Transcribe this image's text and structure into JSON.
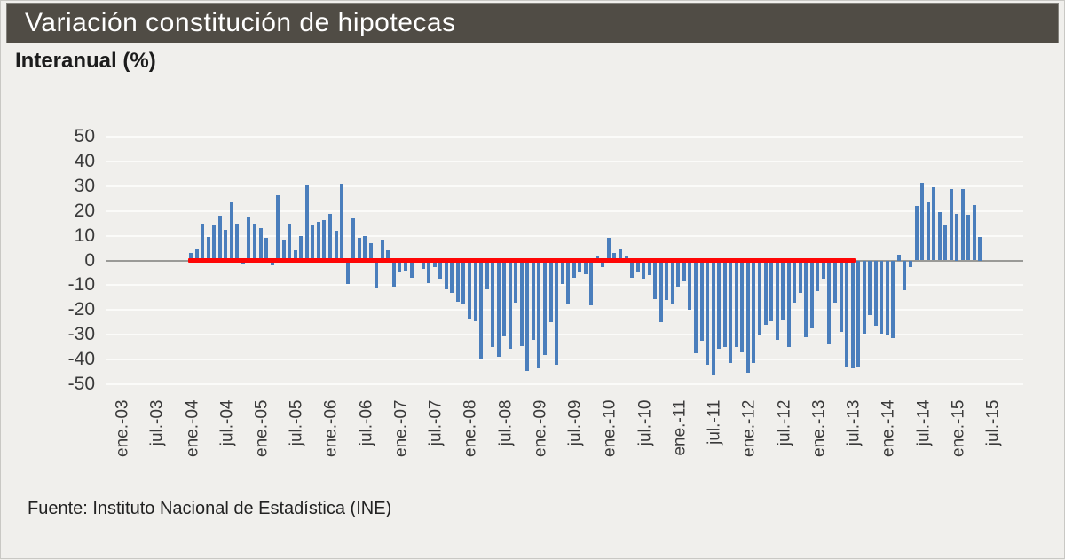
{
  "header": {
    "title": "Variación constitución de hipotecas",
    "subtitle": "Interanual (%)"
  },
  "footer": {
    "source": "Fuente: Instituto Nacional de Estadística (INE)"
  },
  "colors": {
    "title_bar_bg": "#504c45",
    "title_text": "#ffffff",
    "page_bg": "#f0efec",
    "bar_fill": "#4a7ebc",
    "reference_line": "#fe0606",
    "zero_axis": "#9a9a97",
    "gridline": "#fbfbf9",
    "tick_text": "#3a3a3a"
  },
  "chart_data": {
    "type": "bar",
    "title": "Variación constitución de hipotecas",
    "ylabel": "Interanual (%)",
    "xlabel": "",
    "ylim": [
      -50,
      50
    ],
    "y_ticks": [
      50,
      40,
      30,
      20,
      10,
      0,
      -10,
      -20,
      -30,
      -40,
      -50
    ],
    "x_tick_labels": [
      "ene.-03",
      "jul.-03",
      "ene.-04",
      "jul.-04",
      "ene.-05",
      "jul.-05",
      "ene.-06",
      "jul.-06",
      "ene.-07",
      "jul.-07",
      "ene.-08",
      "jul.-08",
      "ene.-09",
      "jul.-09",
      "ene.-10",
      "jul.-10",
      "ene.-11",
      "jul.-11",
      "ene.-12",
      "jul.-12",
      "ene.-13",
      "jul.-13",
      "ene.-14",
      "jul.-14",
      "ene.-15",
      "jul.-15"
    ],
    "grid": true,
    "legend": false,
    "categories": [
      "2004-01",
      "2004-02",
      "2004-03",
      "2004-04",
      "2004-05",
      "2004-06",
      "2004-07",
      "2004-08",
      "2004-09",
      "2004-10",
      "2004-11",
      "2004-12",
      "2005-01",
      "2005-02",
      "2005-03",
      "2005-04",
      "2005-05",
      "2005-06",
      "2005-07",
      "2005-08",
      "2005-09",
      "2005-10",
      "2005-11",
      "2005-12",
      "2006-01",
      "2006-02",
      "2006-03",
      "2006-04",
      "2006-05",
      "2006-06",
      "2006-07",
      "2006-08",
      "2006-09",
      "2006-10",
      "2006-11",
      "2006-12",
      "2007-01",
      "2007-02",
      "2007-03",
      "2007-04",
      "2007-05",
      "2007-06",
      "2007-07",
      "2007-08",
      "2007-09",
      "2007-10",
      "2007-11",
      "2007-12",
      "2008-01",
      "2008-02",
      "2008-03",
      "2008-04",
      "2008-05",
      "2008-06",
      "2008-07",
      "2008-08",
      "2008-09",
      "2008-10",
      "2008-11",
      "2008-12",
      "2009-01",
      "2009-02",
      "2009-03",
      "2009-04",
      "2009-05",
      "2009-06",
      "2009-07",
      "2009-08",
      "2009-09",
      "2009-10",
      "2009-11",
      "2009-12",
      "2010-01",
      "2010-02",
      "2010-03",
      "2010-04",
      "2010-05",
      "2010-06",
      "2010-07",
      "2010-08",
      "2010-09",
      "2010-10",
      "2010-11",
      "2010-12",
      "2011-01",
      "2011-02",
      "2011-03",
      "2011-04",
      "2011-05",
      "2011-06",
      "2011-07",
      "2011-08",
      "2011-09",
      "2011-10",
      "2011-11",
      "2011-12",
      "2012-01",
      "2012-02",
      "2012-03",
      "2012-04",
      "2012-05",
      "2012-06",
      "2012-07",
      "2012-08",
      "2012-09",
      "2012-10",
      "2012-11",
      "2012-12",
      "2013-01",
      "2013-02",
      "2013-03",
      "2013-04",
      "2013-05",
      "2013-06",
      "2013-07",
      "2013-08",
      "2013-09",
      "2013-10",
      "2013-11",
      "2013-12",
      "2014-01",
      "2014-02",
      "2014-03",
      "2014-04",
      "2014-05",
      "2014-06",
      "2014-07",
      "2014-08",
      "2014-09",
      "2014-10",
      "2014-11",
      "2014-12",
      "2015-01",
      "2015-02",
      "2015-03",
      "2015-04",
      "2015-05"
    ],
    "values": [
      3,
      4.5,
      15,
      9.5,
      14,
      18,
      12.5,
      23.5,
      15,
      -1.5,
      17.5,
      15,
      13,
      9,
      -2,
      26.5,
      8.5,
      15,
      4,
      10,
      30.5,
      14.5,
      15.5,
      16.5,
      19,
      12,
      31,
      -9.5,
      17,
      9,
      10,
      7,
      -11,
      8.5,
      4,
      -10.5,
      -4.5,
      -4,
      -7,
      -0.5,
      -3.5,
      -9,
      -2.5,
      -7.5,
      -11.5,
      -13,
      -16.5,
      -17.5,
      -23.5,
      -24.5,
      -39.5,
      -11.5,
      -35,
      -39,
      -30.5,
      -35.5,
      -17,
      -34.5,
      -44.5,
      -32,
      -43.5,
      -38,
      -25,
      -42,
      -9.5,
      -17.5,
      -7,
      -4.5,
      -5.5,
      -18,
      1.5,
      -2.5,
      9,
      3,
      4.5,
      1.5,
      -7,
      -5,
      -7.5,
      -6,
      -15.5,
      -25,
      -16,
      -17.5,
      -10.5,
      -8.5,
      -20,
      -37.5,
      -32.5,
      -42,
      -46.5,
      -35.5,
      -35,
      -41.5,
      -35,
      -37,
      -45.5,
      -41.5,
      -30,
      -26,
      -24.5,
      -32,
      -24,
      -35,
      -17,
      -13,
      -31,
      -27.5,
      -12.5,
      -7.5,
      -34,
      -17,
      -29,
      -43,
      -43.5,
      -43,
      -29.5,
      -22,
      -26.5,
      -29.5,
      -30,
      -31.5,
      2.5,
      -12,
      -2.5,
      22,
      31.5,
      23.5,
      29.5,
      19.5,
      14,
      29,
      19,
      29,
      18.5,
      22.5,
      9.5
    ],
    "reference_line": {
      "value": 0,
      "start_month": "2004-01",
      "end_month": "2013-07",
      "color": "#fe0606"
    }
  }
}
